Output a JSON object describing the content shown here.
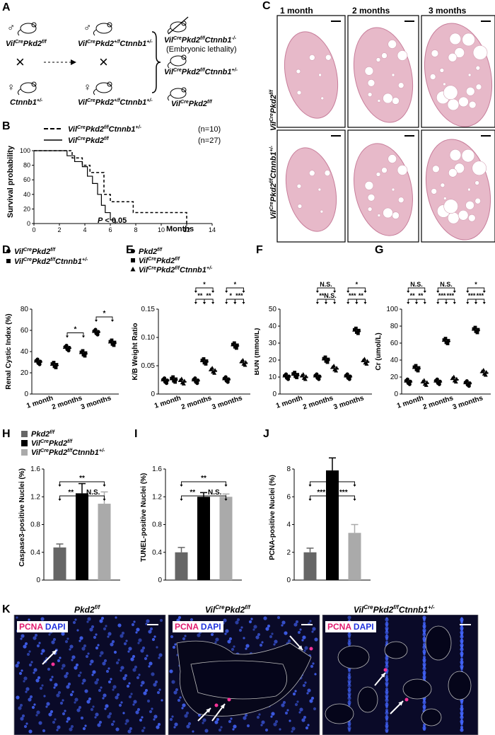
{
  "panel_labels": {
    "A": "A",
    "B": "B",
    "C": "C",
    "D": "D",
    "E": "E",
    "F": "F",
    "G": "G",
    "H": "H",
    "I": "I",
    "J": "J",
    "K": "K"
  },
  "panel_a": {
    "male": "♂",
    "female": "♀",
    "p1": "Vil",
    "p1_sup": "Cre",
    "p1_rest": "Pkd2",
    "p1_sup2": "f/f",
    "p2": "Ctnnb1",
    "p2_sup": "+/-",
    "f1a_pre": "Vil",
    "f1a_sup": "Cre",
    "f1a_mid": "Pkd2",
    "f1a_sup2": "+/f",
    "f1a_end": "Ctnnb1",
    "f1a_sup3": "+/-",
    "off1_pre": "Vil",
    "off1_sup": "Cre",
    "off1_mid": "Pkd2",
    "off1_sup2": "f/f",
    "off1_end": "Ctnnb1",
    "off1_sup3": "-/-",
    "off1_note": "(Embryonic lethality)",
    "off2_pre": "Vil",
    "off2_sup": "Cre",
    "off2_mid": "Pkd2",
    "off2_sup2": "f/f",
    "off2_end": "Ctnnb1",
    "off2_sup3": "+/-",
    "off3_pre": "Vil",
    "off3_sup": "Cre",
    "off3_mid": "Pkd2",
    "off3_sup2": "f/f",
    "cross": "×"
  },
  "panel_b": {
    "legend": [
      {
        "pre": "Vil",
        "sup": "Cre",
        "mid": "Pkd2",
        "sup2": "f/f",
        "end": "Ctnnb1",
        "sup3": "+/-",
        "n": "(n=10)"
      },
      {
        "pre": "Vil",
        "sup": "Cre",
        "mid": "Pkd2",
        "sup2": "f/f",
        "end": "",
        "sup3": "",
        "n": "(n=27)"
      }
    ],
    "ylabel": "Survival probability",
    "xlabel": "Months",
    "pvalue_p": "P",
    "pvalue_rest": " < 0.05"
  },
  "panel_c": {
    "cols": [
      "1 month",
      "2 months",
      "3 months"
    ],
    "rows": [
      {
        "pre": "Vil",
        "sup": "Cre",
        "mid": "Pkd2",
        "sup2": "f/f",
        "end": "",
        "sup3": ""
      },
      {
        "pre": "Vil",
        "sup": "Cre",
        "mid": "Pkd2",
        "sup2": "f/f",
        "end": "Ctnnb1",
        "sup3": "+/-"
      }
    ]
  },
  "panel_k": {
    "titles": [
      {
        "pre": "",
        "sup": "",
        "mid": "Pkd2",
        "sup2": "f/f",
        "end": "",
        "sup3": ""
      },
      {
        "pre": "Vil",
        "sup": "Cre",
        "mid": "Pkd2",
        "sup2": "f/f",
        "end": "",
        "sup3": ""
      },
      {
        "pre": "Vil",
        "sup": "Cre",
        "mid": "Pkd2",
        "sup2": "f/f",
        "end": "Ctnnb1",
        "sup3": "+/-"
      }
    ],
    "stain_pcna": "PCNA",
    "stain_dapi": "DAPI"
  },
  "colors": {
    "pcna": "#ff3399",
    "dapi": "#4466ff",
    "bar_dark": "#666666",
    "bar_black": "#000000",
    "bar_light": "#aaaaaa"
  },
  "chart_data": [
    {
      "id": "B",
      "type": "line",
      "ylabel": "Survival probability",
      "xlabel": "Months",
      "x_ticks": [
        0,
        2,
        4,
        6,
        8,
        10,
        12,
        14
      ],
      "y_ticks": [
        0,
        20,
        40,
        60,
        80,
        100
      ],
      "ylim": [
        0,
        100
      ],
      "xlim": [
        0,
        14
      ],
      "series": [
        {
          "name": "VilCrePkd2f/fCtnnb1+/- (n=10)",
          "style": "dashed",
          "steps": [
            [
              0,
              100
            ],
            [
              3,
              100
            ],
            [
              3,
              90
            ],
            [
              3.8,
              90
            ],
            [
              3.8,
              80
            ],
            [
              4.4,
              80
            ],
            [
              4.4,
              70
            ],
            [
              5.5,
              70
            ],
            [
              5.5,
              40
            ],
            [
              6,
              40
            ],
            [
              6,
              30
            ],
            [
              7.8,
              30
            ],
            [
              7.8,
              15
            ],
            [
              12,
              15
            ],
            [
              12,
              0
            ]
          ]
        },
        {
          "name": "VilCrePkd2f/f (n=27)",
          "style": "solid",
          "steps": [
            [
              0,
              100
            ],
            [
              2.6,
              100
            ],
            [
              2.6,
              93
            ],
            [
              3.2,
              93
            ],
            [
              3.2,
              85
            ],
            [
              3.8,
              85
            ],
            [
              3.8,
              78
            ],
            [
              4.2,
              78
            ],
            [
              4.2,
              65
            ],
            [
              4.6,
              65
            ],
            [
              4.6,
              55
            ],
            [
              5,
              55
            ],
            [
              5,
              40
            ],
            [
              5.3,
              40
            ],
            [
              5.3,
              25
            ],
            [
              5.6,
              25
            ],
            [
              5.6,
              15
            ],
            [
              6,
              15
            ],
            [
              6,
              5
            ],
            [
              6.4,
              5
            ],
            [
              6.4,
              0
            ]
          ]
        }
      ],
      "annotation": "P < 0.05"
    },
    {
      "id": "D",
      "type": "scatter",
      "ylabel": "Renal Cystic Index (%)",
      "categories": [
        "1 month",
        "2 months",
        "3 months"
      ],
      "ylim": [
        0,
        80
      ],
      "y_ticks": [
        0,
        20,
        40,
        60,
        80
      ],
      "series": [
        {
          "name": "VilCrePkd2f/f",
          "marker": "circle",
          "means": [
            30,
            43,
            58
          ]
        },
        {
          "name": "VilCrePkd2f/fCtnnb1+/-",
          "marker": "square",
          "means": [
            27,
            38,
            48
          ]
        }
      ],
      "sig": [
        "*",
        "*"
      ]
    },
    {
      "id": "E",
      "type": "scatter",
      "ylabel": "K/B Weight Ratio",
      "categories": [
        "1 month",
        "2 months",
        "3 months"
      ],
      "ylim": [
        0,
        0.15
      ],
      "y_ticks": [
        "0",
        "0.05",
        "0.10",
        "0.15"
      ],
      "series": [
        {
          "name": "Pkd2f/f",
          "marker": "circle",
          "means": [
            0.023,
            0.023,
            0.025
          ]
        },
        {
          "name": "VilCrePkd2f/f",
          "marker": "square",
          "means": [
            0.025,
            0.057,
            0.085
          ]
        },
        {
          "name": "VilCrePkd2f/fCtnnb1+/-",
          "marker": "triangle",
          "means": [
            0.022,
            0.041,
            0.055
          ]
        }
      ],
      "sig_top": [
        "*",
        "*"
      ],
      "sig_bottom": [
        "**",
        "**",
        "*",
        "***",
        "**",
        "**"
      ]
    },
    {
      "id": "F",
      "type": "scatter",
      "ylabel": "BUN (mmol/L)",
      "categories": [
        "1 month",
        "2 months",
        "3 months"
      ],
      "ylim": [
        0,
        50
      ],
      "y_ticks": [
        0,
        10,
        20,
        30,
        40,
        50
      ],
      "series": [
        {
          "name": "Pkd2f/f",
          "marker": "circle",
          "means": [
            10,
            10,
            10
          ]
        },
        {
          "name": "VilCrePkd2f/f",
          "marker": "square",
          "means": [
            11,
            20,
            37
          ]
        },
        {
          "name": "VilCrePkd2f/fCtnnb1+/-",
          "marker": "triangle",
          "means": [
            10,
            15,
            19
          ]
        }
      ],
      "sig_top": [
        "N.S.",
        "*"
      ],
      "sig_bottom": [
        "**",
        "N.S.",
        "***",
        "**"
      ]
    },
    {
      "id": "G",
      "type": "scatter",
      "ylabel": "Cr (umol/L)",
      "categories": [
        "1 month",
        "2 months",
        "3 months"
      ],
      "ylim": [
        0,
        100
      ],
      "y_ticks": [
        0,
        20,
        40,
        60,
        80,
        100
      ],
      "series": [
        {
          "name": "Pkd2f/f",
          "marker": "circle",
          "means": [
            14,
            14,
            12
          ]
        },
        {
          "name": "VilCrePkd2f/f",
          "marker": "square",
          "means": [
            30,
            62,
            75
          ]
        },
        {
          "name": "VilCrePkd2f/fCtnnb1+/-",
          "marker": "triangle",
          "means": [
            13,
            17,
            25
          ]
        }
      ],
      "sig_top": [
        "N.S.",
        "N.S.",
        "*"
      ],
      "sig_bottom": [
        "**",
        "**",
        "***",
        "***",
        "***",
        "***"
      ]
    },
    {
      "id": "H",
      "type": "bar",
      "ylabel": "Caspase3-positive Nuclei (%)",
      "categories": [
        "Pkd2f/f",
        "VilCrePkd2f/f",
        "VilCrePkd2f/fCtnnb1+/-"
      ],
      "values": [
        0.47,
        1.25,
        1.1
      ],
      "errors": [
        0.05,
        0.14,
        0.17
      ],
      "ylim": [
        0,
        1.6
      ],
      "y_ticks": [
        "0",
        "0.4",
        "0.8",
        "1.2",
        "1.6"
      ],
      "sig": [
        "**",
        "**",
        "N.S."
      ]
    },
    {
      "id": "I",
      "type": "bar",
      "ylabel": "TUNEL-positive Nuclei (%)",
      "categories": [
        "Pkd2f/f",
        "VilCrePkd2f/f",
        "VilCrePkd2f/fCtnnb1+/-"
      ],
      "values": [
        0.4,
        1.2,
        1.2
      ],
      "errors": [
        0.07,
        0.06,
        0.04
      ],
      "ylim": [
        0,
        1.6
      ],
      "y_ticks": [
        "0",
        "0.4",
        "0.8",
        "1.2",
        "1.6"
      ],
      "sig": [
        "**",
        "**",
        "N.S."
      ]
    },
    {
      "id": "J",
      "type": "bar",
      "ylabel": "PCNA-positive Nuclei (%)",
      "categories": [
        "Pkd2f/f",
        "VilCrePkd2f/f",
        "VilCrePkd2f/fCtnnb1+/-"
      ],
      "values": [
        2.0,
        7.9,
        3.4
      ],
      "errors": [
        0.3,
        0.9,
        0.6
      ],
      "ylim": [
        0,
        8
      ],
      "y_ticks": [
        "0",
        "2",
        "4",
        "6",
        "8"
      ],
      "sig": [
        "*",
        "***",
        "***"
      ]
    }
  ],
  "scatter_axis_labels": {
    "m1": "1 month",
    "m2": "2 months",
    "m3": "3 months"
  },
  "legend_dg": [
    {
      "pre": "Vil",
      "sup": "Cre",
      "mid": "Pkd2",
      "sup2": "f/f",
      "end": "",
      "sup3": ""
    },
    {
      "pre": "Vil",
      "sup": "Cre",
      "mid": "Pkd2",
      "sup2": "f/f",
      "end": "Ctnnb1",
      "sup3": "+/-"
    }
  ],
  "legend_eg": [
    {
      "pre": "",
      "sup": "",
      "mid": "Pkd2",
      "sup2": "f/f",
      "end": "",
      "sup3": ""
    },
    {
      "pre": "Vil",
      "sup": "Cre",
      "mid": "Pkd2",
      "sup2": "f/f",
      "end": "",
      "sup3": ""
    },
    {
      "pre": "Vil",
      "sup": "Cre",
      "mid": "Pkd2",
      "sup2": "f/f",
      "end": "Ctnnb1",
      "sup3": "+/-"
    }
  ],
  "legend_hj": [
    {
      "pre": "",
      "sup": "",
      "mid": "Pkd2",
      "sup2": "f/f",
      "end": "",
      "sup3": ""
    },
    {
      "pre": "Vil",
      "sup": "Cre",
      "mid": "Pkd2",
      "sup2": "f/f",
      "end": "",
      "sup3": ""
    },
    {
      "pre": "Vil",
      "sup": "Cre",
      "mid": "Pkd2",
      "sup2": "f/f",
      "end": "Ctnnb1",
      "sup3": "+/-"
    }
  ]
}
